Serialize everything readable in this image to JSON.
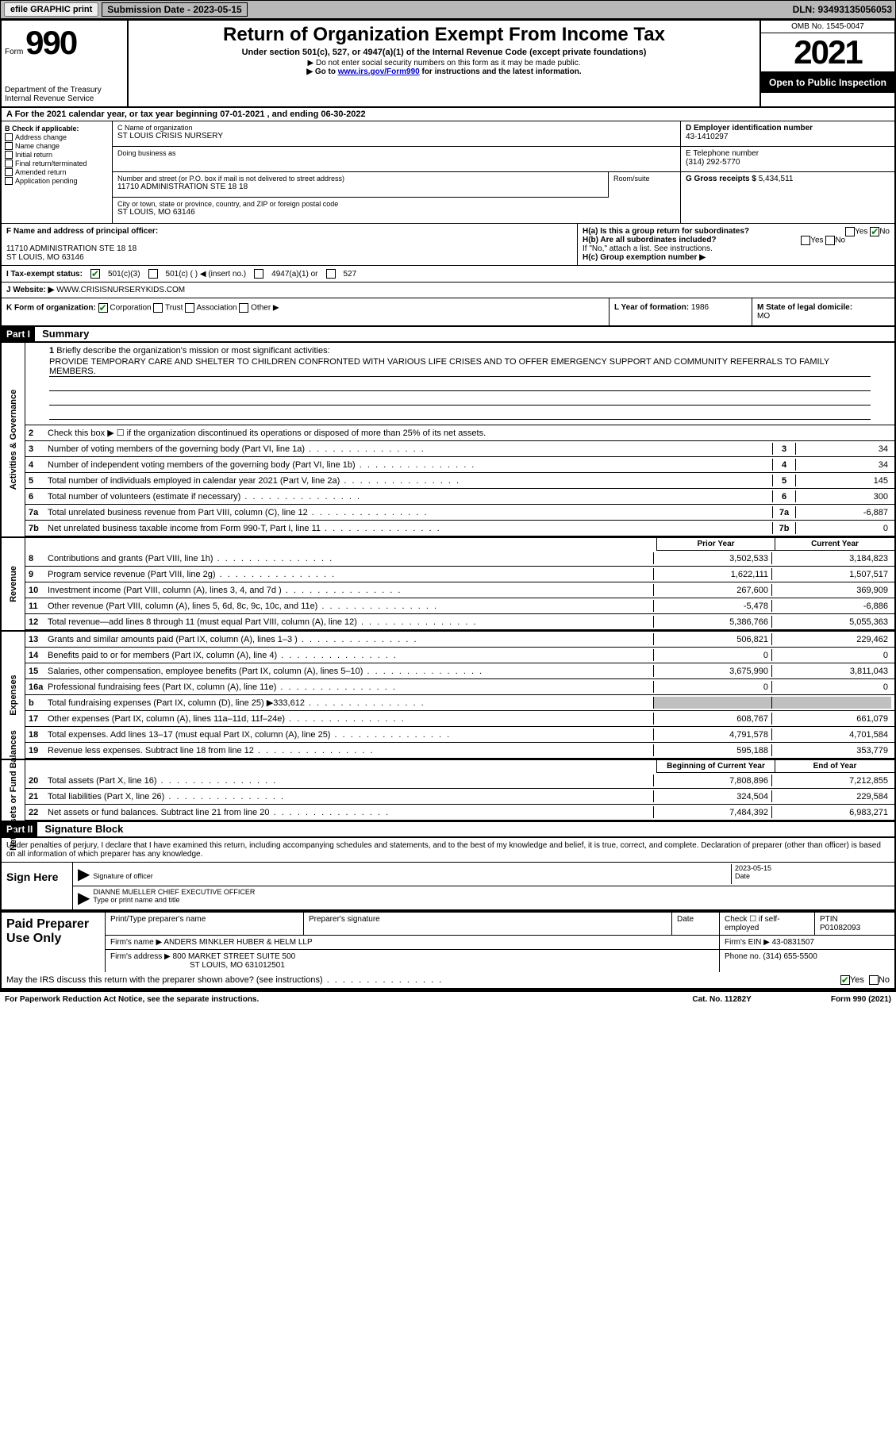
{
  "topbar": {
    "efile_btn": "efile GRAPHIC print",
    "sub_date_label": "Submission Date - 2023-05-15",
    "dln": "DLN: 93493135056053"
  },
  "header": {
    "form_label": "Form",
    "form_num": "990",
    "dept": "Department of the Treasury Internal Revenue Service",
    "title": "Return of Organization Exempt From Income Tax",
    "subtitle": "Under section 501(c), 527, or 4947(a)(1) of the Internal Revenue Code (except private foundations)",
    "note1": "▶ Do not enter social security numbers on this form as it may be made public.",
    "note2": "▶ Go to ",
    "note2_link": "www.irs.gov/Form990",
    "note2_after": " for instructions and the latest information.",
    "omb": "OMB No. 1545-0047",
    "year": "2021",
    "open": "Open to Public Inspection"
  },
  "row_a": "A For the 2021 calendar year, or tax year beginning 07-01-2021    , and ending 06-30-2022",
  "col_b": {
    "label": "B Check if applicable:",
    "items": [
      "Address change",
      "Name change",
      "Initial return",
      "Final return/terminated",
      "Amended return",
      "Application pending"
    ]
  },
  "col_c": {
    "name_label": "C Name of organization",
    "name": "ST LOUIS CRISIS NURSERY",
    "dba_label": "Doing business as",
    "addr_label": "Number and street (or P.O. box if mail is not delivered to street address)",
    "addr": "11710 ADMINISTRATION STE 18 18",
    "room_label": "Room/suite",
    "city_label": "City or town, state or province, country, and ZIP or foreign postal code",
    "city": "ST LOUIS, MO  63146"
  },
  "col_d": {
    "ein_label": "D Employer identification number",
    "ein": "43-1410297",
    "phone_label": "E Telephone number",
    "phone": "(314) 292-5770",
    "gross_label": "G Gross receipts $ ",
    "gross": "5,434,511"
  },
  "row_f": {
    "label": "F Name and address of principal officer:",
    "addr1": "11710 ADMINISTRATION STE 18 18",
    "addr2": "ST LOUIS, MO  63146"
  },
  "row_h": {
    "ha": "H(a)  Is this a group return for subordinates?",
    "hb": "H(b)  Are all subordinates included?",
    "hb_note": "If \"No,\" attach a list. See instructions.",
    "hc": "H(c)  Group exemption number ▶"
  },
  "row_i": {
    "label": "I  Tax-exempt status:",
    "opts": [
      "501(c)(3)",
      "501(c) (  ) ◀ (insert no.)",
      "4947(a)(1) or",
      "527"
    ]
  },
  "row_j": {
    "label": "J  Website: ▶",
    "val": "WWW.CRISISNURSERYKIDS.COM"
  },
  "row_k": {
    "label": "K Form of organization:",
    "opts": [
      "Corporation",
      "Trust",
      "Association",
      "Other ▶"
    ],
    "year_label": "L Year of formation: ",
    "year": "1986",
    "state_label": "M State of legal domicile: ",
    "state": "MO"
  },
  "part1": {
    "hdr": "Part I",
    "title": "Summary",
    "line1_label": "Briefly describe the organization's mission or most significant activities:",
    "line1_text": "PROVIDE TEMPORARY CARE AND SHELTER TO CHILDREN CONFRONTED WITH VARIOUS LIFE CRISES AND TO OFFER EMERGENCY SUPPORT AND COMMUNITY REFERRALS TO FAMILY MEMBERS.",
    "line2": "Check this box ▶ ☐ if the organization discontinued its operations or disposed of more than 25% of its net assets.",
    "lines_a": [
      {
        "n": "3",
        "d": "Number of voting members of the governing body (Part VI, line 1a)",
        "v": "34"
      },
      {
        "n": "4",
        "d": "Number of independent voting members of the governing body (Part VI, line 1b)",
        "v": "34"
      },
      {
        "n": "5",
        "d": "Total number of individuals employed in calendar year 2021 (Part V, line 2a)",
        "v": "145"
      },
      {
        "n": "6",
        "d": "Total number of volunteers (estimate if necessary)",
        "v": "300"
      },
      {
        "n": "7a",
        "d": "Total unrelated business revenue from Part VIII, column (C), line 12",
        "v": "-6,887"
      },
      {
        "n": "7b",
        "d": "Net unrelated business taxable income from Form 990-T, Part I, line 11",
        "v": "0"
      }
    ],
    "prior_hdr": "Prior Year",
    "curr_hdr": "Current Year",
    "revenue": [
      {
        "n": "8",
        "d": "Contributions and grants (Part VIII, line 1h)",
        "p": "3,502,533",
        "c": "3,184,823"
      },
      {
        "n": "9",
        "d": "Program service revenue (Part VIII, line 2g)",
        "p": "1,622,111",
        "c": "1,507,517"
      },
      {
        "n": "10",
        "d": "Investment income (Part VIII, column (A), lines 3, 4, and 7d )",
        "p": "267,600",
        "c": "369,909"
      },
      {
        "n": "11",
        "d": "Other revenue (Part VIII, column (A), lines 5, 6d, 8c, 9c, 10c, and 11e)",
        "p": "-5,478",
        "c": "-6,886"
      },
      {
        "n": "12",
        "d": "Total revenue—add lines 8 through 11 (must equal Part VIII, column (A), line 12)",
        "p": "5,386,766",
        "c": "5,055,363"
      }
    ],
    "expenses": [
      {
        "n": "13",
        "d": "Grants and similar amounts paid (Part IX, column (A), lines 1–3 )",
        "p": "506,821",
        "c": "229,462"
      },
      {
        "n": "14",
        "d": "Benefits paid to or for members (Part IX, column (A), line 4)",
        "p": "0",
        "c": "0"
      },
      {
        "n": "15",
        "d": "Salaries, other compensation, employee benefits (Part IX, column (A), lines 5–10)",
        "p": "3,675,990",
        "c": "3,811,043"
      },
      {
        "n": "16a",
        "d": "Professional fundraising fees (Part IX, column (A), line 11e)",
        "p": "0",
        "c": "0"
      },
      {
        "n": "b",
        "d": "Total fundraising expenses (Part IX, column (D), line 25) ▶333,612",
        "p": "",
        "c": "",
        "gray": true
      },
      {
        "n": "17",
        "d": "Other expenses (Part IX, column (A), lines 11a–11d, 11f–24e)",
        "p": "608,767",
        "c": "661,079"
      },
      {
        "n": "18",
        "d": "Total expenses. Add lines 13–17 (must equal Part IX, column (A), line 25)",
        "p": "4,791,578",
        "c": "4,701,584"
      },
      {
        "n": "19",
        "d": "Revenue less expenses. Subtract line 18 from line 12",
        "p": "595,188",
        "c": "353,779"
      }
    ],
    "net_hdr_p": "Beginning of Current Year",
    "net_hdr_c": "End of Year",
    "net": [
      {
        "n": "20",
        "d": "Total assets (Part X, line 16)",
        "p": "7,808,896",
        "c": "7,212,855"
      },
      {
        "n": "21",
        "d": "Total liabilities (Part X, line 26)",
        "p": "324,504",
        "c": "229,584"
      },
      {
        "n": "22",
        "d": "Net assets or fund balances. Subtract line 21 from line 20",
        "p": "7,484,392",
        "c": "6,983,271"
      }
    ],
    "vert_labels": {
      "activities": "Activities & Governance",
      "revenue": "Revenue",
      "expenses": "Expenses",
      "net": "Net Assets or Fund Balances"
    }
  },
  "part2": {
    "hdr": "Part II",
    "title": "Signature Block",
    "decl": "Under penalties of perjury, I declare that I have examined this return, including accompanying schedules and statements, and to the best of my knowledge and belief, it is true, correct, and complete. Declaration of preparer (other than officer) is based on all information of which preparer has any knowledge.",
    "sign_here": "Sign Here",
    "sig_officer": "Signature of officer",
    "sig_date": "2023-05-15",
    "date_label": "Date",
    "officer_name": "DIANNE MUELLER  CHIEF EXECUTIVE OFFICER",
    "officer_label": "Type or print name and title",
    "paid_prep": "Paid Preparer Use Only",
    "prep_name_label": "Print/Type preparer's name",
    "prep_sig_label": "Preparer's signature",
    "prep_date_label": "Date",
    "prep_self": "Check ☐ if self-employed",
    "ptin_label": "PTIN",
    "ptin": "P01082093",
    "firm_name_label": "Firm's name    ▶ ",
    "firm_name": "ANDERS MINKLER HUBER & HELM LLP",
    "firm_ein_label": "Firm's EIN ▶ ",
    "firm_ein": "43-0831507",
    "firm_addr_label": "Firm's address ▶ ",
    "firm_addr1": "800 MARKET STREET SUITE 500",
    "firm_addr2": "ST LOUIS, MO  631012501",
    "firm_phone_label": "Phone no. ",
    "firm_phone": "(314) 655-5500",
    "discuss": "May the IRS discuss this return with the preparer shown above? (see instructions)"
  },
  "footer": {
    "left": "For Paperwork Reduction Act Notice, see the separate instructions.",
    "mid": "Cat. No. 11282Y",
    "right": "Form 990 (2021)"
  }
}
